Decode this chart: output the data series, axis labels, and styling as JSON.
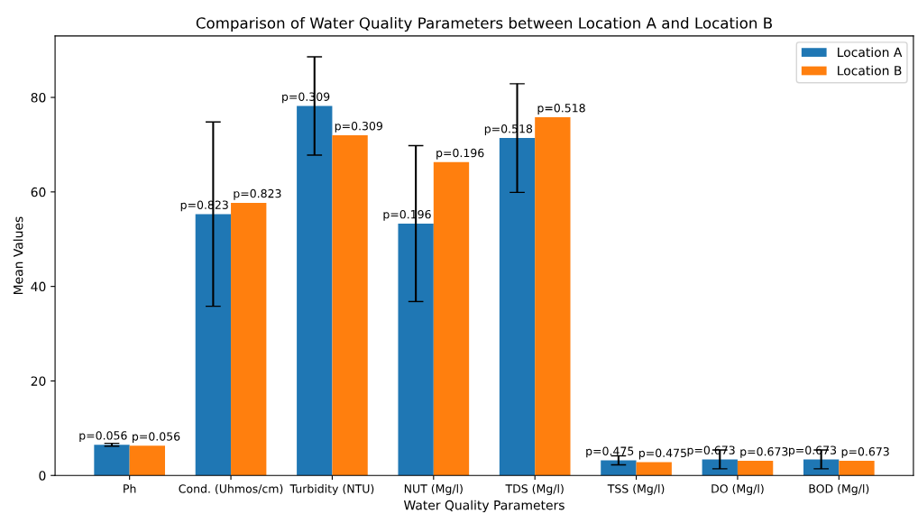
{
  "chart_data": {
    "type": "bar",
    "title": "Comparison of Water Quality Parameters between Location A and Location B",
    "xlabel": "Water Quality Parameters",
    "ylabel": "Mean Values",
    "categories": [
      "Ph",
      "Cond. (Uhmos/cm)",
      "Turbidity (NTU)",
      "NUT (Mg/l)",
      "TDS (Mg/l)",
      "TSS (Mg/l)",
      "DO (Mg/l)",
      "BOD (Mg/l)"
    ],
    "series": [
      {
        "name": "Location A",
        "color": "#1f77b4",
        "values": [
          6.5,
          55.3,
          78.2,
          53.3,
          71.4,
          3.2,
          3.4,
          3.4
        ],
        "errors": [
          0.3,
          19.5,
          10.4,
          16.5,
          11.5,
          0.95,
          2.0,
          2.0
        ]
      },
      {
        "name": "Location B",
        "color": "#ff7f0e",
        "values": [
          6.3,
          57.7,
          72.0,
          66.3,
          75.8,
          2.8,
          3.1,
          3.1
        ]
      }
    ],
    "annotations": [
      {
        "text": "p=0.056",
        "x": "Ph",
        "y": 6.5
      },
      {
        "text": "p=0.056",
        "x": "Ph",
        "y": 6.3
      },
      {
        "text": "p=0.823",
        "x": "Cond. (Uhmos/cm)",
        "y": 55.3
      },
      {
        "text": "p=0.823",
        "x": "Cond. (Uhmos/cm)",
        "y": 57.7
      },
      {
        "text": "p=0.309",
        "x": "Turbidity (NTU)",
        "y": 78.2
      },
      {
        "text": "p=0.309",
        "x": "Turbidity (NTU)",
        "y": 72.0
      },
      {
        "text": "p=0.196",
        "x": "NUT (Mg/l)",
        "y": 53.3
      },
      {
        "text": "p=0.196",
        "x": "NUT (Mg/l)",
        "y": 66.3
      },
      {
        "text": "p=0.518",
        "x": "TDS (Mg/l)",
        "y": 71.4
      },
      {
        "text": "p=0.518",
        "x": "TDS (Mg/l)",
        "y": 75.8
      },
      {
        "text": "p=0.475",
        "x": "TSS (Mg/l)",
        "y": 3.2
      },
      {
        "text": "p=0.475",
        "x": "TSS (Mg/l)",
        "y": 2.8
      },
      {
        "text": "p=0.673",
        "x": "DO (Mg/l)",
        "y": 3.4
      },
      {
        "text": "p=0.673",
        "x": "DO (Mg/l)",
        "y": 3.1
      },
      {
        "text": "p=0.673",
        "x": "BOD (Mg/l)",
        "y": 3.4
      },
      {
        "text": "p=0.673",
        "x": "BOD (Mg/l)",
        "y": 3.1
      }
    ],
    "ylim": [
      0,
      93
    ],
    "yticks": [
      0,
      20,
      40,
      60,
      80
    ],
    "grid": false,
    "legend": "top right"
  }
}
